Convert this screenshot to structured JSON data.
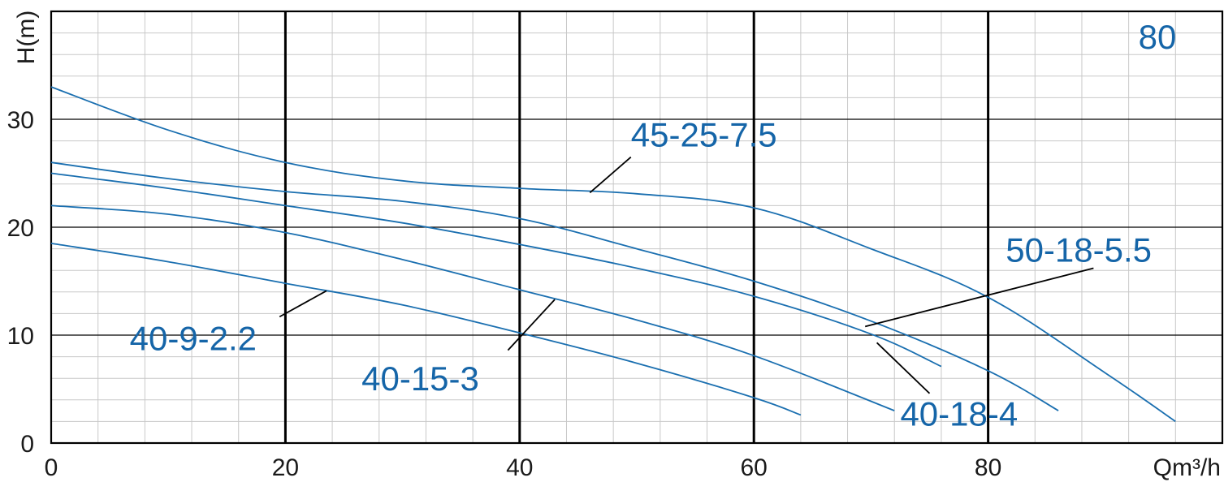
{
  "chart_data": {
    "type": "line",
    "title": "80",
    "xlabel": "Qm³/h",
    "ylabel": "H(m)",
    "xlim": [
      0,
      100
    ],
    "ylim": [
      0,
      40
    ],
    "x_ticks": [
      0,
      20,
      40,
      60,
      80
    ],
    "y_ticks": [
      0,
      10,
      20,
      30
    ],
    "grid": true,
    "colors": {
      "curve": "#1a6fb0",
      "label": "#1565a8",
      "grid_minor": "#c8c8c8",
      "grid_major": "#000000"
    },
    "series": [
      {
        "name": "45-25-7.5",
        "x": [
          0,
          10,
          20,
          30,
          40,
          50,
          60,
          70,
          80,
          90,
          96
        ],
        "y": [
          33,
          29,
          26,
          24.3,
          23.6,
          23.1,
          21.8,
          18,
          13.5,
          6.5,
          2
        ]
      },
      {
        "name": "50-18-5.5",
        "x": [
          0,
          10,
          20,
          30,
          40,
          50,
          60,
          70,
          80,
          86
        ],
        "y": [
          26,
          24.5,
          23.3,
          22.4,
          20.8,
          18,
          15,
          11.3,
          6.7,
          3
        ]
      },
      {
        "name": "40-18-4",
        "x": [
          0,
          10,
          20,
          30,
          40,
          50,
          60,
          70,
          76
        ],
        "y": [
          25,
          23.6,
          22,
          20.4,
          18.4,
          16.2,
          13.6,
          10.1,
          7.1
        ]
      },
      {
        "name": "40-15-3",
        "x": [
          0,
          10,
          20,
          30,
          40,
          50,
          60,
          72
        ],
        "y": [
          22,
          21.2,
          19.5,
          17,
          14.2,
          11.4,
          8.1,
          3
        ]
      },
      {
        "name": "40-9-2.2",
        "x": [
          0,
          10,
          20,
          30,
          40,
          50,
          60,
          64
        ],
        "y": [
          18.5,
          16.8,
          14.8,
          12.8,
          10.2,
          7.4,
          4.2,
          2.6
        ]
      }
    ],
    "annotations": [
      {
        "series": 0,
        "label": "45-25-7.5",
        "point": [
          46,
          23.2
        ],
        "text_at": [
          49.5,
          27.5
        ],
        "leader_to": [
          49.5,
          26.5
        ],
        "anchor": "start"
      },
      {
        "series": 1,
        "label": "50-18-5.5",
        "point": [
          69.5,
          10.8
        ],
        "text_at": [
          81.5,
          16.8
        ],
        "leader_to": [
          89,
          16.2
        ],
        "anchor": "start"
      },
      {
        "series": 2,
        "label": "40-18-4",
        "point": [
          70.5,
          9.3
        ],
        "text_at": [
          72.5,
          1.6
        ],
        "leader_to": [
          75,
          4.6
        ],
        "anchor": "start"
      },
      {
        "series": 3,
        "label": "40-15-3",
        "point": [
          43,
          13.3
        ],
        "text_at": [
          26.5,
          4.9
        ],
        "leader_to": [
          39,
          8.6
        ],
        "anchor": "start"
      },
      {
        "series": 4,
        "label": "40-9-2.2",
        "point": [
          23.5,
          14.1
        ],
        "text_at": [
          6.7,
          8.6
        ],
        "leader_to": [
          19.5,
          11.7
        ],
        "anchor": "start"
      }
    ]
  }
}
